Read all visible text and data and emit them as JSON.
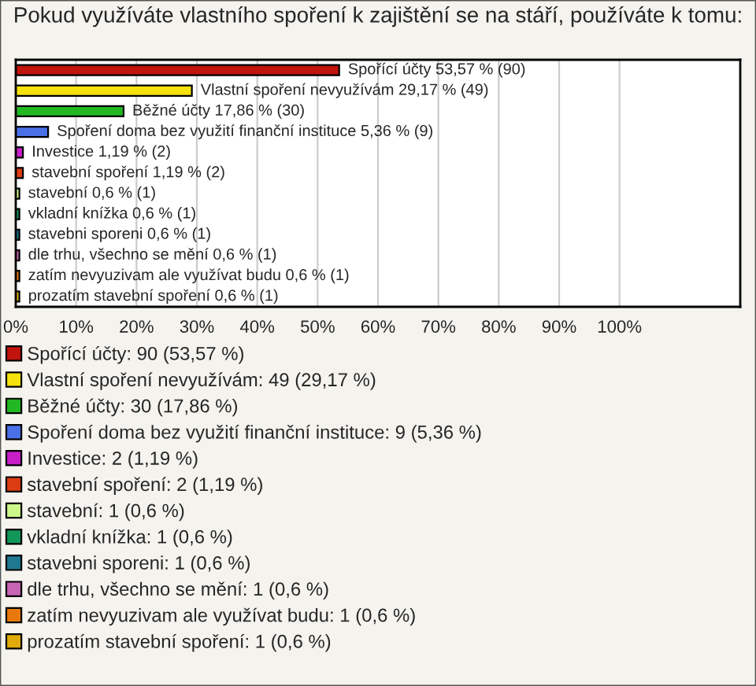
{
  "chart_data": {
    "type": "bar",
    "orientation": "horizontal",
    "title": "Pokud využíváte vlastního spoření k zajištění se na stáří, používáte k tomu:",
    "categories": [
      null,
      null,
      null,
      null,
      null,
      null,
      null,
      null,
      null,
      null,
      null,
      null
    ],
    "series": [
      {
        "name": "Spořící účty: 90 (53,57 %)",
        "color": "#c0140c",
        "values": [
          53.57,
          null,
          null,
          null,
          null,
          null,
          null,
          null,
          null,
          null,
          null,
          null
        ],
        "value_labels": [
          "Spořící účty 53,57 % (90)",
          null,
          null,
          null,
          null,
          null,
          null,
          null,
          null,
          null,
          null,
          null
        ]
      },
      {
        "name": "Vlastní spoření nevyužívám: 49 (29,17 %)",
        "color": "#f5e20c",
        "values": [
          null,
          29.17,
          null,
          null,
          null,
          null,
          null,
          null,
          null,
          null,
          null,
          null
        ],
        "value_labels": [
          null,
          "Vlastní spoření nevyužívám 29,17 % (49)",
          null,
          null,
          null,
          null,
          null,
          null,
          null,
          null,
          null,
          null
        ]
      },
      {
        "name": "Běžné účty: 30 (17,86 %)",
        "color": "#22b822",
        "values": [
          null,
          null,
          17.86,
          null,
          null,
          null,
          null,
          null,
          null,
          null,
          null,
          null
        ],
        "value_labels": [
          null,
          null,
          "Běžné účty 17,86 % (30)",
          null,
          null,
          null,
          null,
          null,
          null,
          null,
          null,
          null
        ]
      },
      {
        "name": "Spoření doma bez využití finanční instituce: 9 (5,36 %)",
        "color": "#4a70e8",
        "values": [
          null,
          null,
          null,
          5.36,
          null,
          null,
          null,
          null,
          null,
          null,
          null,
          null
        ],
        "value_labels": [
          null,
          null,
          null,
          "Spoření doma bez využití finanční instituce 5,36 % (9)",
          null,
          null,
          null,
          null,
          null,
          null,
          null,
          null
        ]
      },
      {
        "name": "Investice: 2 (1,19 %)",
        "color": "#c81ec8",
        "values": [
          null,
          null,
          null,
          null,
          1.19,
          null,
          null,
          null,
          null,
          null,
          null,
          null
        ],
        "value_labels": [
          null,
          null,
          null,
          null,
          "Investice 1,19 % (2)",
          null,
          null,
          null,
          null,
          null,
          null,
          null
        ]
      },
      {
        "name": "stavební spoření: 2 (1,19 %)",
        "color": "#dc3c12",
        "values": [
          null,
          null,
          null,
          null,
          null,
          1.19,
          null,
          null,
          null,
          null,
          null,
          null
        ],
        "value_labels": [
          null,
          null,
          null,
          null,
          null,
          "stavební spoření 1,19 % (2)",
          null,
          null,
          null,
          null,
          null,
          null
        ]
      },
      {
        "name": "stavební: 1 (0,6 %)",
        "color": "#ccf88a",
        "values": [
          null,
          null,
          null,
          null,
          null,
          null,
          0.6,
          null,
          null,
          null,
          null,
          null
        ],
        "value_labels": [
          null,
          null,
          null,
          null,
          null,
          null,
          "stavební 0,6 % (1)",
          null,
          null,
          null,
          null,
          null
        ]
      },
      {
        "name": "vkladní knížka: 1 (0,6 %)",
        "color": "#12965a",
        "values": [
          null,
          null,
          null,
          null,
          null,
          null,
          null,
          0.6,
          null,
          null,
          null,
          null
        ],
        "value_labels": [
          null,
          null,
          null,
          null,
          null,
          null,
          null,
          "vkladní knížka 0,6 % (1)",
          null,
          null,
          null,
          null
        ]
      },
      {
        "name": "stavebni sporeni: 1 (0,6 %)",
        "color": "#1e7890",
        "values": [
          null,
          null,
          null,
          null,
          null,
          null,
          null,
          null,
          0.6,
          null,
          null,
          null
        ],
        "value_labels": [
          null,
          null,
          null,
          null,
          null,
          null,
          null,
          null,
          "stavebni sporeni 0,6 % (1)",
          null,
          null,
          null
        ]
      },
      {
        "name": "dle trhu, všechno se mění: 1 (0,6 %)",
        "color": "#c864b4",
        "values": [
          null,
          null,
          null,
          null,
          null,
          null,
          null,
          null,
          null,
          0.6,
          null,
          null
        ],
        "value_labels": [
          null,
          null,
          null,
          null,
          null,
          null,
          null,
          null,
          null,
          "dle trhu, všechno se mění 0,6 % (1)",
          null,
          null
        ]
      },
      {
        "name": "zatím nevyuzivam ale využívat budu: 1 (0,6 %)",
        "color": "#e8780c",
        "values": [
          null,
          null,
          null,
          null,
          null,
          null,
          null,
          null,
          null,
          null,
          0.6,
          null
        ],
        "value_labels": [
          null,
          null,
          null,
          null,
          null,
          null,
          null,
          null,
          null,
          null,
          "zatím nevyuzivam ale využívat budu 0,6 % (1)",
          null
        ]
      },
      {
        "name": "prozatím stavební spoření: 1 (0,6 %)",
        "color": "#e0aa0a",
        "values": [
          null,
          null,
          null,
          null,
          null,
          null,
          null,
          null,
          null,
          null,
          null,
          0.6
        ],
        "value_labels": [
          null,
          null,
          null,
          null,
          null,
          null,
          null,
          null,
          null,
          null,
          null,
          "prozatím stavební spoření 0,6 % (1)"
        ]
      }
    ],
    "xlim": [
      0,
      120
    ],
    "xticks": [
      {
        "value": 0,
        "label": "0%"
      },
      {
        "value": 10,
        "label": "10%"
      },
      {
        "value": 20,
        "label": "20%"
      },
      {
        "value": 30,
        "label": "30%"
      },
      {
        "value": 40,
        "label": "40%"
      },
      {
        "value": 50,
        "label": "50%"
      },
      {
        "value": 60,
        "label": "60%"
      },
      {
        "value": 70,
        "label": "70%"
      },
      {
        "value": 80,
        "label": "80%"
      },
      {
        "value": 90,
        "label": "90%"
      },
      {
        "value": 100,
        "label": "100%"
      }
    ],
    "grid": "x",
    "legend": "bottom"
  }
}
